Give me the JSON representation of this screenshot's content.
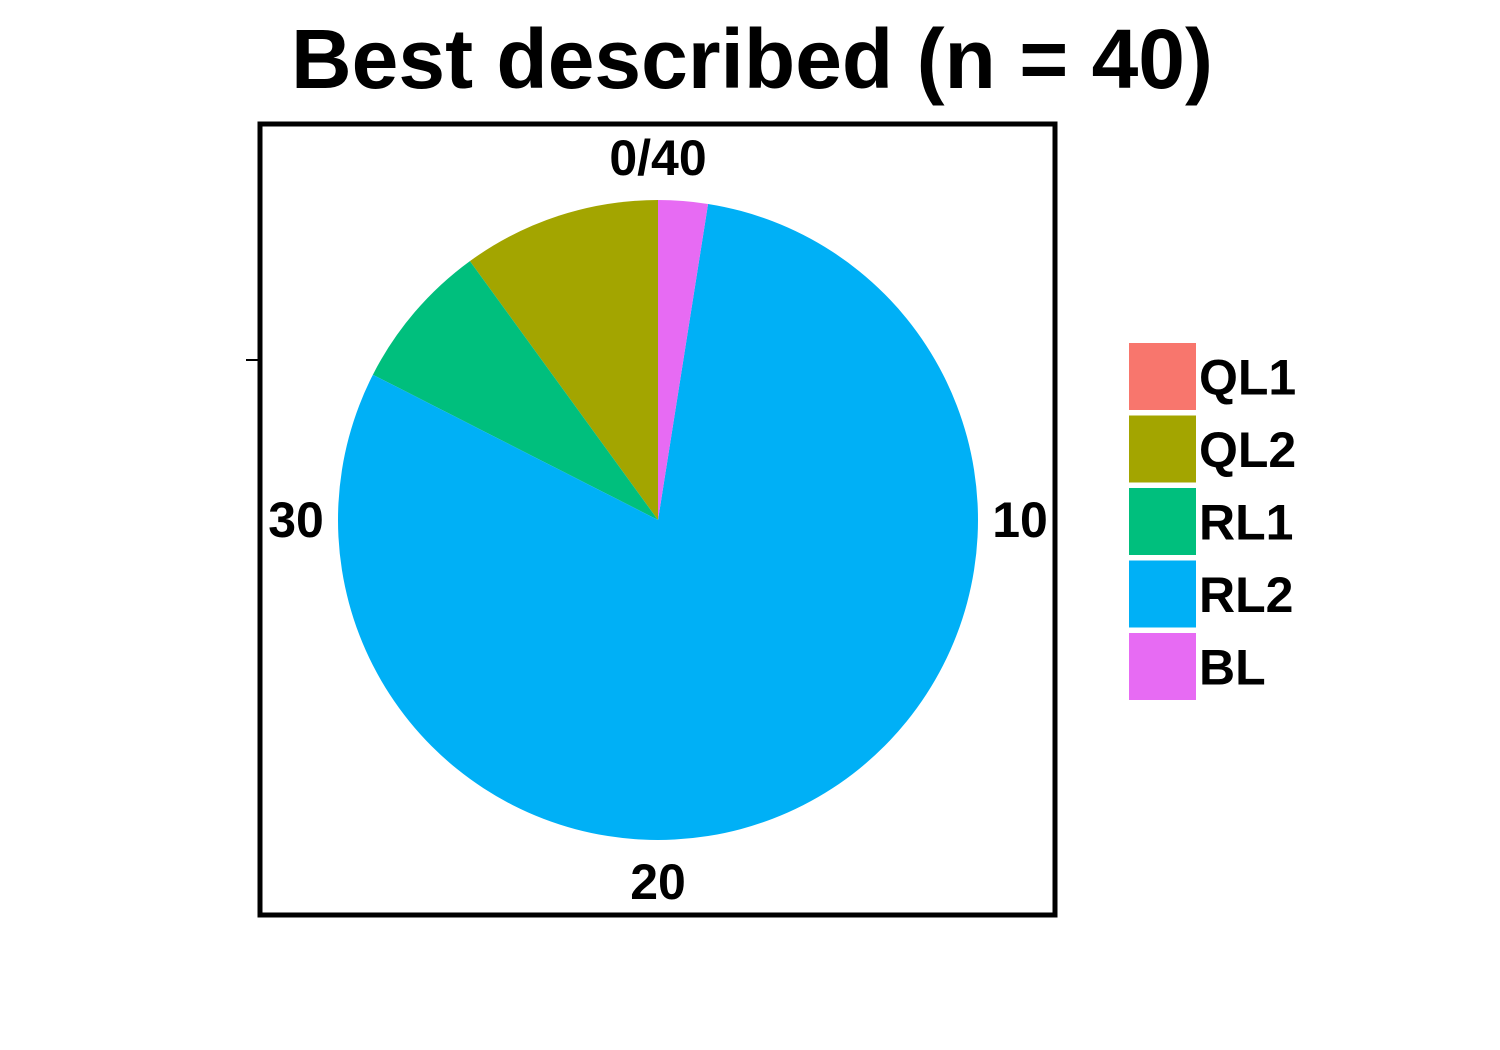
{
  "chart_data": {
    "type": "pie",
    "title": "Best described (n = 40)",
    "total": 40,
    "tick_labels": [
      "0/40",
      "10",
      "20",
      "30"
    ],
    "tick_values": [
      0,
      10,
      20,
      30
    ],
    "slices": [
      {
        "name": "QL1",
        "value": 0,
        "color": "#F8766D"
      },
      {
        "name": "QL2",
        "value": 4,
        "color": "#A3A500"
      },
      {
        "name": "RL1",
        "value": 3,
        "color": "#00BF7D"
      },
      {
        "name": "RL2",
        "value": 32,
        "color": "#00B0F6"
      },
      {
        "name": "BL",
        "value": 1,
        "color": "#E76BF3"
      }
    ],
    "legend_placement": "right",
    "grid": false
  }
}
